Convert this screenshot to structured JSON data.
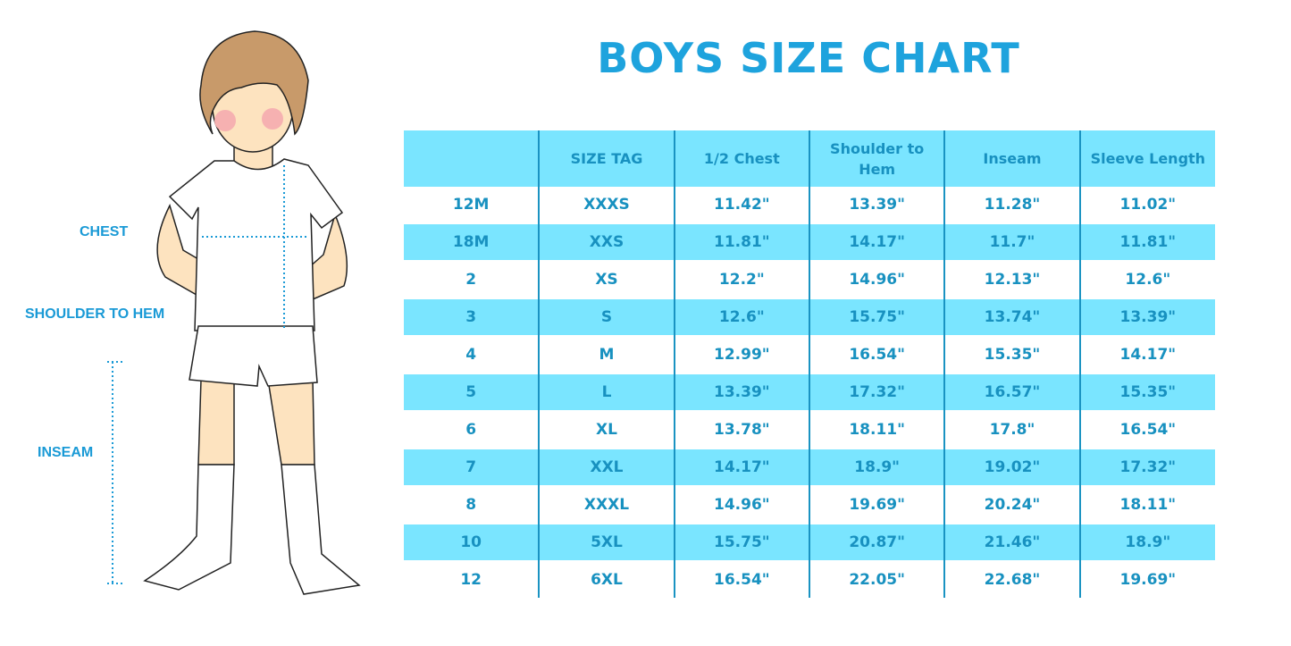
{
  "title": "BOYS SIZE CHART",
  "measure_labels": {
    "chest": "CHEST",
    "shoulder_to_hem": "SHOULDER TO HEM",
    "inseam": "INSEAM"
  },
  "colors": {
    "accent": "#1ea3dd",
    "stripe": "#7ae5ff",
    "text": "#1891c0"
  },
  "chart_data": {
    "type": "table",
    "title": "BOYS SIZE CHART",
    "columns": [
      "",
      "SIZE TAG",
      "1/2 Chest",
      "Shoulder to Hem",
      "Inseam",
      "Sleeve Length"
    ],
    "rows": [
      [
        "12M",
        "XXXS",
        "11.42\"",
        "13.39\"",
        "11.28\"",
        "11.02\""
      ],
      [
        "18M",
        "XXS",
        "11.81\"",
        "14.17\"",
        "11.7\"",
        "11.81\""
      ],
      [
        "2",
        "XS",
        "12.2\"",
        "14.96\"",
        "12.13\"",
        "12.6\""
      ],
      [
        "3",
        "S",
        "12.6\"",
        "15.75\"",
        "13.74\"",
        "13.39\""
      ],
      [
        "4",
        "M",
        "12.99\"",
        "16.54\"",
        "15.35\"",
        "14.17\""
      ],
      [
        "5",
        "L",
        "13.39\"",
        "17.32\"",
        "16.57\"",
        "15.35\""
      ],
      [
        "6",
        "XL",
        "13.78\"",
        "18.11\"",
        "17.8\"",
        "16.54\""
      ],
      [
        "7",
        "XXL",
        "14.17\"",
        "18.9\"",
        "19.02\"",
        "17.32\""
      ],
      [
        "8",
        "XXXL",
        "14.96\"",
        "19.69\"",
        "20.24\"",
        "18.11\""
      ],
      [
        "10",
        "5XL",
        "15.75\"",
        "20.87\"",
        "21.46\"",
        "18.9\""
      ],
      [
        "12",
        "6XL",
        "16.54\"",
        "22.05\"",
        "22.68\"",
        "19.69\""
      ]
    ]
  }
}
